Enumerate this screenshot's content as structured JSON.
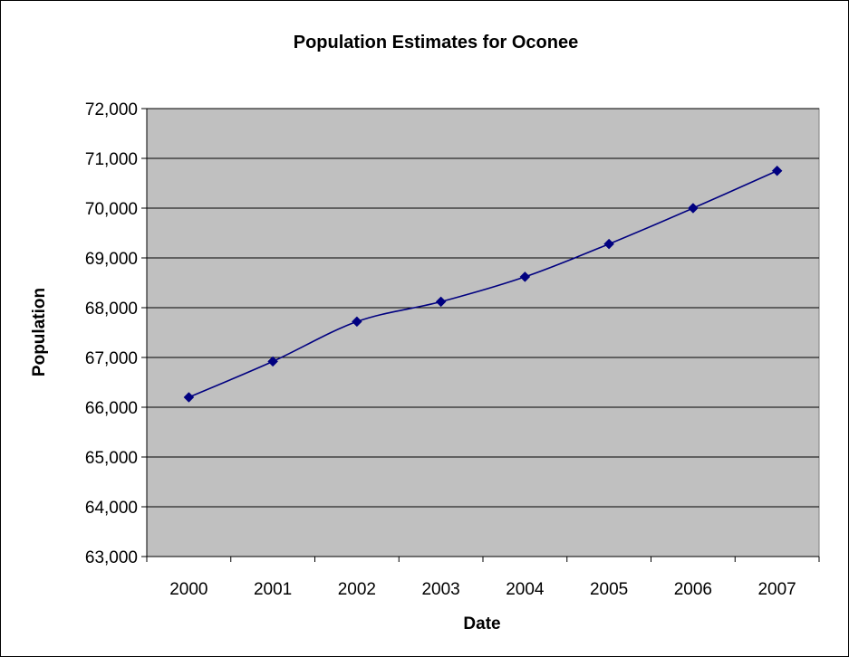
{
  "chart_data": {
    "type": "line",
    "title": "Population Estimates for Oconee",
    "xlabel": "Date",
    "ylabel": "Population",
    "categories": [
      "2000",
      "2001",
      "2002",
      "2003",
      "2004",
      "2005",
      "2006",
      "2007"
    ],
    "series": [
      {
        "values": [
          66200,
          66920,
          67720,
          68120,
          68620,
          69280,
          70000,
          70750
        ],
        "color": "#000080",
        "marker": "diamond"
      }
    ],
    "ylim": [
      63000,
      72000
    ],
    "ytick_step": 1000,
    "ytick_labels": [
      "63,000",
      "64,000",
      "65,000",
      "66,000",
      "67,000",
      "68,000",
      "69,000",
      "70,000",
      "71,000",
      "72,000"
    ],
    "grid": true,
    "legend": "none",
    "plot_background": "#c0c0c0",
    "gridline_color": "#000000"
  }
}
